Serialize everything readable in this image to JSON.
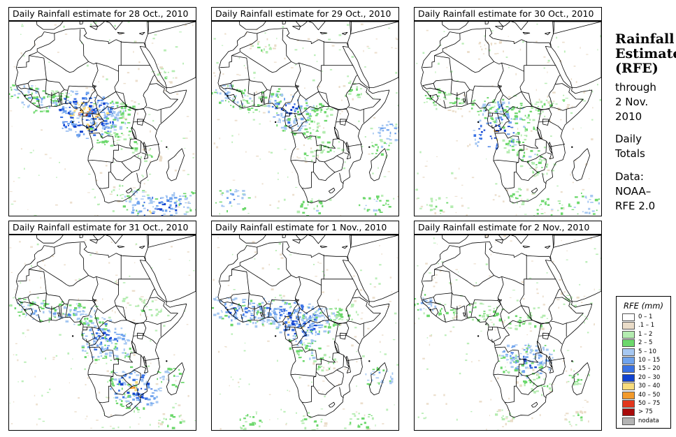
{
  "panels": [
    {
      "title": "Daily Rainfall estimate for  28 Oct., 2010",
      "rain": [
        {
          "lon": -15,
          "lat": 12,
          "mm": 8
        },
        {
          "lon": -10,
          "lat": 8,
          "mm": 12
        },
        {
          "lon": -5,
          "lat": 7,
          "mm": 8
        },
        {
          "lon": 0,
          "lat": 9,
          "mm": 3
        },
        {
          "lon": 6,
          "lat": 6,
          "mm": 18
        },
        {
          "lon": 9,
          "lat": 4,
          "mm": 35
        },
        {
          "lon": 11,
          "lat": 1,
          "mm": 45
        },
        {
          "lon": 13,
          "lat": -1,
          "mm": 30
        },
        {
          "lon": 16,
          "lat": 2,
          "mm": 22
        },
        {
          "lon": 19,
          "lat": 0,
          "mm": 15
        },
        {
          "lon": 22,
          "lat": 3,
          "mm": 8
        },
        {
          "lon": 24,
          "lat": -3,
          "mm": 6
        },
        {
          "lon": 27,
          "lat": 4,
          "mm": 3
        },
        {
          "lon": 18,
          "lat": -8,
          "mm": 4
        },
        {
          "lon": 28,
          "lat": -10,
          "mm": 3
        },
        {
          "lon": 25,
          "lat": -30,
          "mm": 3
        },
        {
          "lon": 32,
          "lat": -34,
          "mm": 12
        },
        {
          "lon": 38,
          "lat": -37,
          "mm": 25
        },
        {
          "lon": 45,
          "lat": -36,
          "mm": 18
        },
        {
          "lon": 52,
          "lat": -34,
          "mm": 8
        },
        {
          "lon": 36,
          "lat": -15,
          "mm": 2
        },
        {
          "lon": 42,
          "lat": 18,
          "mm": 2
        }
      ]
    },
    {
      "title": "Daily Rainfall estimate for  29 Oct., 2010",
      "rain": [
        {
          "lon": -14,
          "lat": 11,
          "mm": 10
        },
        {
          "lon": -9,
          "lat": 8,
          "mm": 8
        },
        {
          "lon": -4,
          "lat": 6,
          "mm": 4
        },
        {
          "lon": 5,
          "lat": 9,
          "mm": 6
        },
        {
          "lon": 10,
          "lat": 5,
          "mm": 22
        },
        {
          "lon": 12,
          "lat": 0,
          "mm": 15
        },
        {
          "lon": 15,
          "lat": -2,
          "mm": 8
        },
        {
          "lon": 19,
          "lat": 4,
          "mm": 6
        },
        {
          "lon": 23,
          "lat": 2,
          "mm": 4
        },
        {
          "lon": 21,
          "lat": -6,
          "mm": 3
        },
        {
          "lon": 27,
          "lat": -12,
          "mm": 3
        },
        {
          "lon": 18,
          "lat": -14,
          "mm": 2
        },
        {
          "lon": 36,
          "lat": 12,
          "mm": 3
        },
        {
          "lon": 52,
          "lat": -5,
          "mm": 14
        },
        {
          "lon": 48,
          "lat": -12,
          "mm": 4
        },
        {
          "lon": -12,
          "lat": -33,
          "mm": 12
        },
        {
          "lon": 20,
          "lat": -37,
          "mm": 6
        },
        {
          "lon": 45,
          "lat": -35,
          "mm": 8
        },
        {
          "lon": 0,
          "lat": 30,
          "mm": 2
        }
      ]
    },
    {
      "title": "Daily Rainfall estimate for  30 Oct., 2010",
      "rain": [
        {
          "lon": -12,
          "lat": 9,
          "mm": 4
        },
        {
          "lon": -5,
          "lat": 7,
          "mm": 3
        },
        {
          "lon": 7,
          "lat": 6,
          "mm": 5
        },
        {
          "lon": 13,
          "lat": 4,
          "mm": 14
        },
        {
          "lon": 17,
          "lat": 1,
          "mm": 10
        },
        {
          "lon": 21,
          "lat": 3,
          "mm": 6
        },
        {
          "lon": 24,
          "lat": -3,
          "mm": 4
        },
        {
          "lon": 12,
          "lat": -6,
          "mm": 30
        },
        {
          "lon": 20,
          "lat": -10,
          "mm": 4
        },
        {
          "lon": 26,
          "lat": -16,
          "mm": 6
        },
        {
          "lon": 30,
          "lat": -20,
          "mm": 3
        },
        {
          "lon": 32,
          "lat": 5,
          "mm": 3
        },
        {
          "lon": 38,
          "lat": 8,
          "mm": 2
        },
        {
          "lon": 22,
          "lat": -32,
          "mm": 3
        },
        {
          "lon": 34,
          "lat": -37,
          "mm": 6
        },
        {
          "lon": 48,
          "lat": -35,
          "mm": 10
        },
        {
          "lon": -10,
          "lat": -35,
          "mm": 3
        },
        {
          "lon": 10,
          "lat": 30,
          "mm": 1
        }
      ]
    },
    {
      "title": "Daily Rainfall estimate for  31 Oct., 2010",
      "rain": [
        {
          "lon": -15,
          "lat": 11,
          "mm": 6
        },
        {
          "lon": -8,
          "lat": 9,
          "mm": 10
        },
        {
          "lon": -2,
          "lat": 9,
          "mm": 8
        },
        {
          "lon": 4,
          "lat": 8,
          "mm": 12
        },
        {
          "lon": 10,
          "lat": 8,
          "mm": 8
        },
        {
          "lon": 13,
          "lat": 3,
          "mm": 8
        },
        {
          "lon": 17,
          "lat": 0,
          "mm": 22
        },
        {
          "lon": 20,
          "lat": -3,
          "mm": 18
        },
        {
          "lon": 15,
          "lat": -6,
          "mm": 12
        },
        {
          "lon": 23,
          "lat": -7,
          "mm": 8
        },
        {
          "lon": 26,
          "lat": -18,
          "mm": 10
        },
        {
          "lon": 30,
          "lat": -22,
          "mm": 28
        },
        {
          "lon": 33,
          "lat": -25,
          "mm": 18
        },
        {
          "lon": 28,
          "lat": -28,
          "mm": 6
        },
        {
          "lon": 44,
          "lat": -18,
          "mm": 8
        },
        {
          "lon": 45,
          "lat": -36,
          "mm": 3
        },
        {
          "lon": 36,
          "lat": 10,
          "mm": 3
        },
        {
          "lon": 30,
          "lat": 14,
          "mm": 2
        }
      ]
    },
    {
      "title": "Daily Rainfall estimate for  1 Nov., 2010",
      "rain": [
        {
          "lon": -15,
          "lat": 11,
          "mm": 12
        },
        {
          "lon": -10,
          "lat": 9,
          "mm": 18
        },
        {
          "lon": -5,
          "lat": 8,
          "mm": 14
        },
        {
          "lon": 0,
          "lat": 9,
          "mm": 16
        },
        {
          "lon": 5,
          "lat": 9,
          "mm": 14
        },
        {
          "lon": 9,
          "lat": 7,
          "mm": 18
        },
        {
          "lon": 13,
          "lat": 6,
          "mm": 30
        },
        {
          "lon": 15,
          "lat": 3,
          "mm": 25
        },
        {
          "lon": 19,
          "lat": 5,
          "mm": 22
        },
        {
          "lon": 22,
          "lat": 4,
          "mm": 12
        },
        {
          "lon": 27,
          "lat": 7,
          "mm": 8
        },
        {
          "lon": 33,
          "lat": 9,
          "mm": 4
        },
        {
          "lon": 16,
          "lat": -3,
          "mm": 10
        },
        {
          "lon": 19,
          "lat": -8,
          "mm": 6
        },
        {
          "lon": 25,
          "lat": -12,
          "mm": 3
        },
        {
          "lon": 47,
          "lat": -18,
          "mm": 10
        },
        {
          "lon": -5,
          "lat": -36,
          "mm": 4
        },
        {
          "lon": 20,
          "lat": -37,
          "mm": 3
        },
        {
          "lon": 40,
          "lat": -36,
          "mm": 4
        }
      ]
    },
    {
      "title": "Daily Rainfall estimate for  2 Nov., 2010",
      "rain": [
        {
          "lon": -15,
          "lat": 12,
          "mm": 10
        },
        {
          "lon": -8,
          "lat": 9,
          "mm": 3
        },
        {
          "lon": 5,
          "lat": 9,
          "mm": 4
        },
        {
          "lon": 12,
          "lat": 7,
          "mm": 4
        },
        {
          "lon": 20,
          "lat": 5,
          "mm": 3
        },
        {
          "lon": 28,
          "lat": 5,
          "mm": 3
        },
        {
          "lon": 22,
          "lat": -9,
          "mm": 18
        },
        {
          "lon": 27,
          "lat": -12,
          "mm": 22
        },
        {
          "lon": 30,
          "lat": -9,
          "mm": 12
        },
        {
          "lon": 18,
          "lat": -12,
          "mm": 6
        },
        {
          "lon": 25,
          "lat": -18,
          "mm": 3
        },
        {
          "lon": 30,
          "lat": -22,
          "mm": 3
        },
        {
          "lon": 45,
          "lat": -18,
          "mm": 3
        },
        {
          "lon": 42,
          "lat": 14,
          "mm": 2
        },
        {
          "lon": 15,
          "lat": -35,
          "mm": 2
        },
        {
          "lon": 45,
          "lat": -35,
          "mm": 2
        }
      ]
    }
  ],
  "sidebar": {
    "title_line1": "Rainfall",
    "title_line2": "Estimate",
    "title_line3": "(RFE)",
    "through_line1": "through",
    "through_line2": "2 Nov.",
    "through_line3": "2010",
    "totals_line1": "Daily",
    "totals_line2": "Totals",
    "source_line1": "Data:",
    "source_line2": "NOAA–",
    "source_line3": "RFE 2.0"
  },
  "legend": {
    "title": "RFE (mm)",
    "items": [
      {
        "label": "0 – 1",
        "color": "#ffffff"
      },
      {
        "label": ".1 – 1",
        "color": "#eadcc8"
      },
      {
        "label": "1 – 2",
        "color": "#b4ecb0"
      },
      {
        "label": "2 – 5",
        "color": "#6cd86c"
      },
      {
        "label": "5 – 10",
        "color": "#a6c8f2"
      },
      {
        "label": "10 – 15",
        "color": "#70a4ee"
      },
      {
        "label": "15 – 20",
        "color": "#3a72e4"
      },
      {
        "label": "20 – 30",
        "color": "#1042d0"
      },
      {
        "label": "30 – 40",
        "color": "#f8dc7c"
      },
      {
        "label": "40 – 50",
        "color": "#f29a2c"
      },
      {
        "label": "50 – 75",
        "color": "#e2361c"
      },
      {
        "label": "> 75",
        "color": "#a80a0a"
      },
      {
        "label": "nodata",
        "color": "#b4b4b4"
      }
    ]
  }
}
